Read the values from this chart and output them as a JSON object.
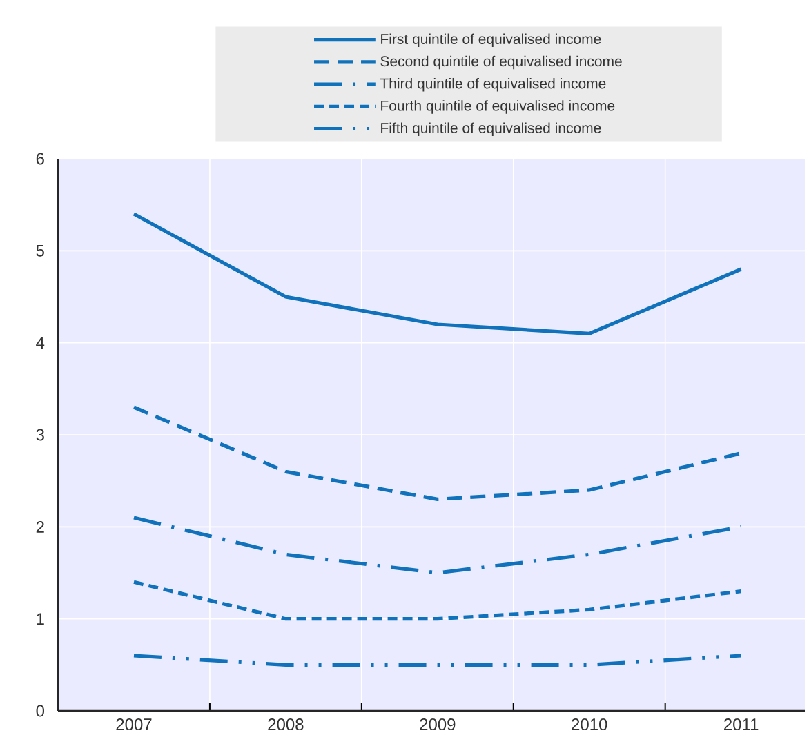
{
  "chart_data": {
    "type": "line",
    "categories": [
      "2007",
      "2008",
      "2009",
      "2010",
      "2011"
    ],
    "series": [
      {
        "name": "First quintile of equivalised income",
        "color": "#0f72ba",
        "line_style": "solid",
        "values": [
          5.4,
          4.5,
          4.2,
          4.1,
          4.8
        ]
      },
      {
        "name": "Second quintile of equivalised income",
        "color": "#0f72ba",
        "line_style": "dashed",
        "values": [
          3.3,
          2.6,
          2.3,
          2.4,
          2.8
        ]
      },
      {
        "name": "Third quintile of equivalised income",
        "color": "#0f72ba",
        "line_style": "dashdot",
        "values": [
          2.1,
          1.7,
          1.5,
          1.7,
          2.0
        ]
      },
      {
        "name": "Fourth quintile of equivalised income",
        "color": "#0f72ba",
        "line_style": "densely dashed",
        "values": [
          1.4,
          1.0,
          1.0,
          1.1,
          1.3
        ]
      },
      {
        "name": "Fifth quintile of equivalised income",
        "color": "#0f72ba",
        "line_style": "dashdotdot",
        "values": [
          0.6,
          0.5,
          0.5,
          0.5,
          0.6
        ]
      }
    ],
    "ylim": [
      0,
      6
    ],
    "yticks": [
      0,
      1,
      2,
      3,
      4,
      5,
      6
    ],
    "grid": true,
    "legend": "top",
    "marker": "none"
  }
}
